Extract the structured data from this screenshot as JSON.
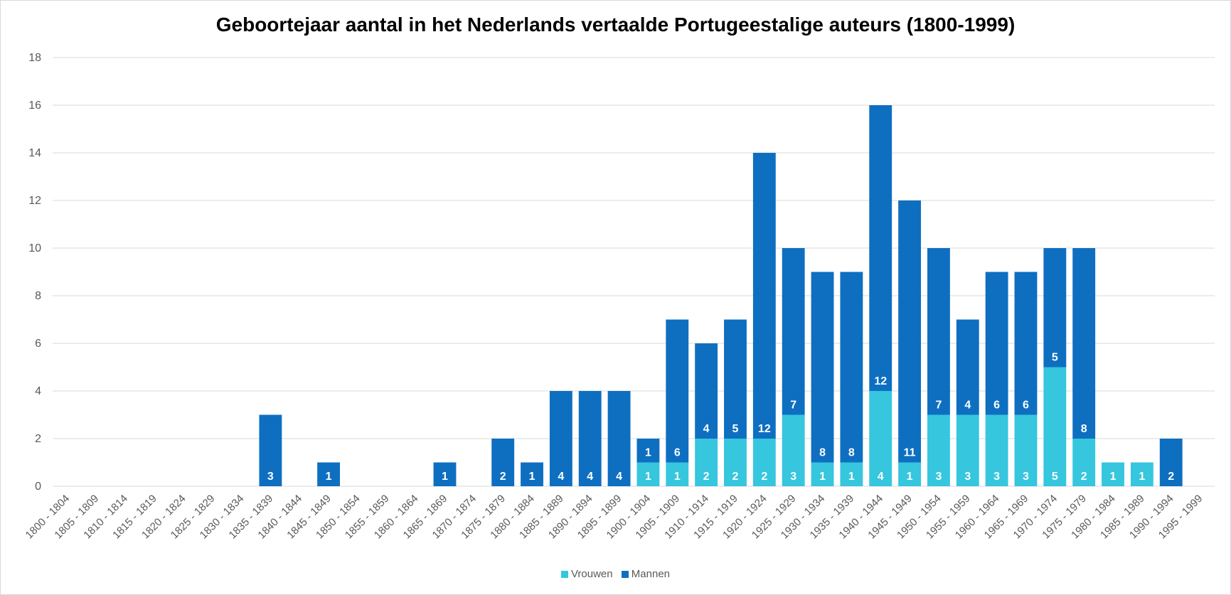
{
  "chart_data": {
    "type": "bar",
    "stacked": true,
    "title": "Geboortejaar aantal in het Nederlands vertaalde Portugeestalige auteurs (1800-1999)",
    "xlabel": "",
    "ylabel": "",
    "ylim": [
      0,
      18
    ],
    "yticks": [
      0,
      2,
      4,
      6,
      8,
      10,
      12,
      14,
      16,
      18
    ],
    "grid": true,
    "legend_position": "bottom",
    "categories": [
      "1800 - 1804",
      "1805 - 1809",
      "1810 - 1814",
      "1815 - 1819",
      "1820 - 1824",
      "1825 - 1829",
      "1830 - 1834",
      "1835 - 1839",
      "1840 - 1844",
      "1845 - 1849",
      "1850 - 1854",
      "1855 - 1859",
      "1860 - 1864",
      "1865 - 1869",
      "1870 - 1874",
      "1875 - 1879",
      "1880 - 1884",
      "1885 - 1889",
      "1890 - 1894",
      "1895 - 1899",
      "1900 - 1904",
      "1905 - 1909",
      "1910 - 1914",
      "1915 - 1919",
      "1920 - 1924",
      "1925 - 1929",
      "1930 - 1934",
      "1935 - 1939",
      "1940 - 1944",
      "1945 - 1949",
      "1950 - 1954",
      "1955 - 1959",
      "1960 - 1964",
      "1965 - 1969",
      "1970 - 1974",
      "1975 - 1979",
      "1980 - 1984",
      "1985 - 1989",
      "1990 - 1994",
      "1995 - 1999"
    ],
    "series": [
      {
        "name": "Vrouwen",
        "color": "#36c6de",
        "values": [
          0,
          0,
          0,
          0,
          0,
          0,
          0,
          0,
          0,
          0,
          0,
          0,
          0,
          0,
          0,
          0,
          0,
          0,
          0,
          0,
          1,
          1,
          2,
          2,
          2,
          3,
          1,
          1,
          4,
          1,
          3,
          3,
          3,
          3,
          5,
          2,
          1,
          1,
          0,
          0
        ]
      },
      {
        "name": "Mannen",
        "color": "#0e6fc1",
        "values": [
          0,
          0,
          0,
          0,
          0,
          0,
          0,
          3,
          0,
          1,
          0,
          0,
          0,
          1,
          0,
          2,
          1,
          4,
          4,
          4,
          1,
          6,
          4,
          5,
          12,
          7,
          8,
          8,
          12,
          11,
          7,
          4,
          6,
          6,
          5,
          8,
          0,
          0,
          2,
          0
        ]
      }
    ]
  },
  "colors": {
    "grid": "#d9d9d9",
    "axis_text": "#595959",
    "title": "#000000"
  }
}
